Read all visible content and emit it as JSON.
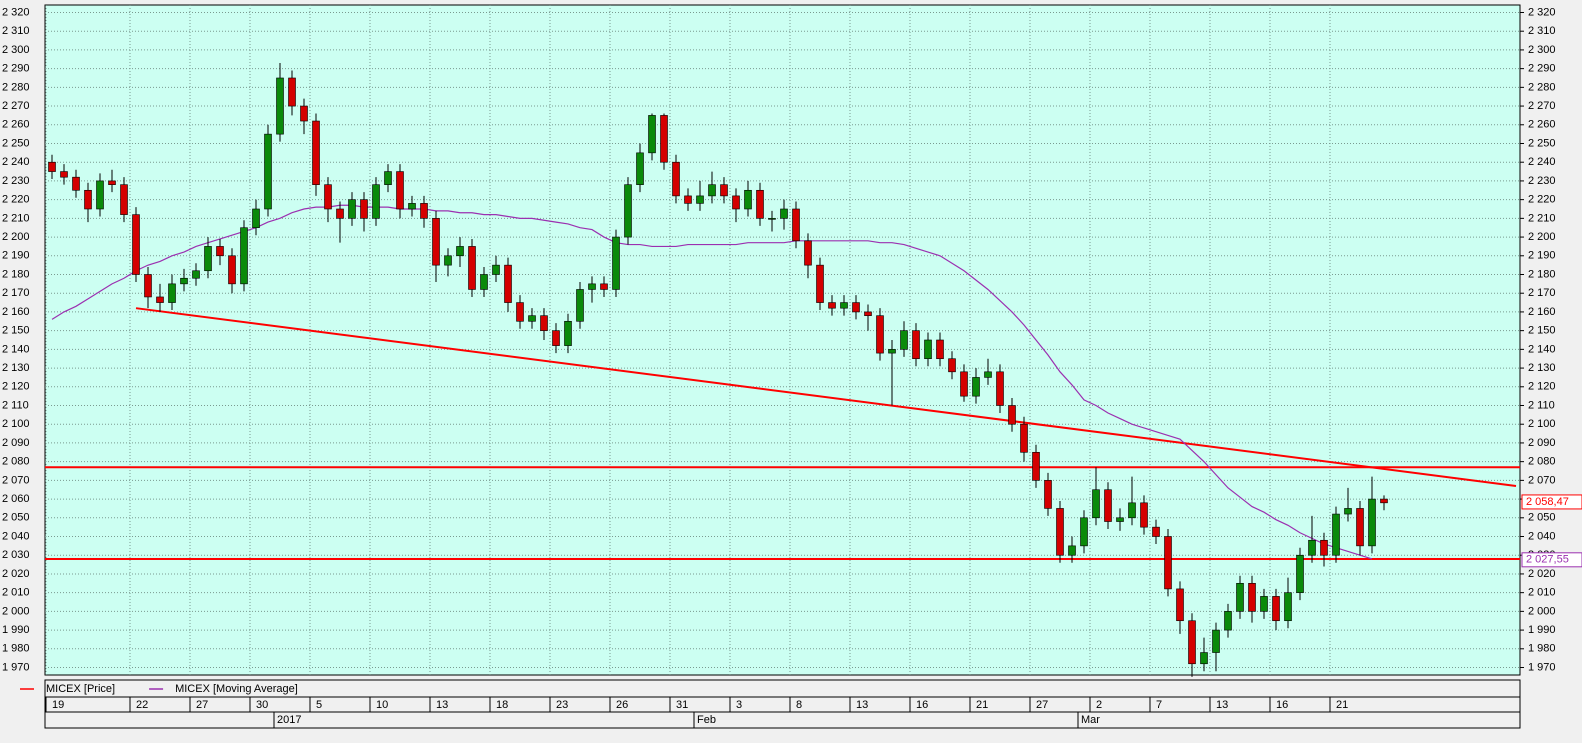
{
  "chart_data": {
    "type": "candlestick",
    "legend": [
      {
        "name": "MICEX [Price]",
        "color": "#ff0000"
      },
      {
        "name": "MICEX [Moving Average]",
        "color": "#9b30b0"
      }
    ],
    "up_color": "#0a8a0a",
    "down_color": "#d40000",
    "categories": [
      "19",
      null,
      null,
      null,
      null,
      null,
      null,
      "22",
      null,
      null,
      null,
      null,
      "27",
      null,
      null,
      null,
      null,
      "30",
      null,
      null,
      null,
      null,
      "5",
      null,
      null,
      null,
      null,
      "10",
      null,
      null,
      null,
      null,
      "13",
      null,
      null,
      null,
      null,
      "18",
      null,
      null,
      null,
      null,
      "23",
      null,
      null,
      null,
      null,
      "26",
      null,
      null,
      null,
      null,
      "31",
      null,
      null,
      null,
      null,
      "3",
      null,
      null,
      null,
      null,
      "8",
      null,
      null,
      null,
      null,
      "13",
      null,
      null,
      null,
      null,
      "16",
      null,
      null,
      null,
      null,
      "21",
      null,
      null,
      null,
      null,
      "27",
      null,
      null,
      null,
      null,
      "2",
      null,
      null,
      null,
      null,
      "7",
      null,
      null,
      null,
      null,
      "13",
      null,
      null,
      null,
      null,
      "16",
      null,
      null,
      null,
      null,
      "21",
      null,
      null,
      null,
      null
    ],
    "months": [
      null,
      null,
      null,
      null,
      null,
      null,
      null,
      null,
      null,
      null,
      null,
      null,
      null,
      null,
      null,
      null,
      null,
      null,
      null,
      "2017",
      null,
      null,
      null,
      null,
      null,
      null,
      null,
      null,
      null,
      null,
      null,
      null,
      null,
      null,
      null,
      null,
      null,
      null,
      null,
      null,
      null,
      null,
      null,
      null,
      null,
      null,
      null,
      null,
      null,
      null,
      null,
      null,
      null,
      null,
      "Feb",
      null,
      null,
      null,
      null,
      null,
      null,
      null,
      null,
      null,
      null,
      null,
      null,
      null,
      null,
      null,
      null,
      null,
      null,
      null,
      null,
      null,
      null,
      null,
      null,
      null,
      null,
      null,
      null,
      null,
      null,
      null,
      "Mar",
      null,
      null,
      null,
      null,
      null,
      null,
      null,
      null,
      null,
      null,
      null,
      null,
      null,
      null,
      null,
      null,
      null,
      null,
      null,
      null,
      null,
      null,
      null,
      null,
      null
    ],
    "open": [
      2240,
      2235,
      2232,
      2225,
      2215,
      2230,
      2228,
      2212,
      2180,
      2168,
      2165,
      2175,
      2178,
      2182,
      2195,
      2190,
      2175,
      2205,
      2215,
      2255,
      2285,
      2270,
      2262,
      2228,
      2215,
      2210,
      2220,
      2210,
      2228,
      2235,
      2215,
      2218,
      2210,
      2185,
      2190,
      2195,
      2172,
      2180,
      2185,
      2165,
      2155,
      2158,
      2150,
      2142,
      2155,
      2172,
      2175,
      2172,
      2200,
      2228,
      2245,
      2265,
      2240,
      2222,
      2218,
      2222,
      2228,
      2222,
      2215,
      2225,
      2210,
      2210,
      2215,
      2198,
      2185,
      2165,
      2162,
      2165,
      2160,
      2158,
      2138,
      2140,
      2150,
      2135,
      2145,
      2135,
      2128,
      2115,
      2125,
      2128,
      2110,
      2100,
      2085,
      2070,
      2055,
      2030,
      2035,
      2050,
      2065,
      2048,
      2050,
      2058,
      2045,
      2040,
      2012,
      1995,
      1972,
      1978,
      1990,
      2000,
      2015,
      2000,
      2008,
      1995,
      2010,
      2030,
      2038,
      2030,
      2052,
      2055,
      2035,
      2060
    ],
    "high": [
      2244,
      2239,
      2236,
      2229,
      2234,
      2236,
      2232,
      2216,
      2184,
      2175,
      2180,
      2183,
      2186,
      2200,
      2199,
      2194,
      2209,
      2220,
      2260,
      2293,
      2289,
      2274,
      2266,
      2232,
      2219,
      2224,
      2224,
      2232,
      2239,
      2239,
      2222,
      2222,
      2214,
      2194,
      2200,
      2199,
      2184,
      2190,
      2189,
      2169,
      2162,
      2162,
      2154,
      2159,
      2176,
      2179,
      2179,
      2204,
      2232,
      2250,
      2266,
      2266,
      2244,
      2226,
      2230,
      2235,
      2232,
      2226,
      2230,
      2229,
      2214,
      2220,
      2219,
      2202,
      2189,
      2169,
      2169,
      2169,
      2164,
      2162,
      2145,
      2155,
      2154,
      2149,
      2149,
      2139,
      2132,
      2130,
      2135,
      2132,
      2114,
      2104,
      2089,
      2074,
      2059,
      2040,
      2054,
      2077,
      2069,
      2055,
      2072,
      2062,
      2049,
      2044,
      2016,
      1999,
      1986,
      1994,
      2004,
      2019,
      2019,
      2012,
      2012,
      2018,
      2034,
      2051,
      2042,
      2056,
      2066,
      2059,
      2072,
      2062
    ],
    "low": [
      2231,
      2228,
      2221,
      2208,
      2211,
      2224,
      2208,
      2176,
      2162,
      2160,
      2161,
      2171,
      2174,
      2178,
      2185,
      2170,
      2171,
      2201,
      2211,
      2251,
      2265,
      2255,
      2222,
      2208,
      2197,
      2206,
      2203,
      2206,
      2224,
      2210,
      2211,
      2205,
      2176,
      2179,
      2184,
      2168,
      2168,
      2176,
      2160,
      2151,
      2151,
      2145,
      2138,
      2138,
      2151,
      2165,
      2168,
      2168,
      2196,
      2224,
      2241,
      2236,
      2218,
      2214,
      2214,
      2218,
      2218,
      2208,
      2211,
      2206,
      2203,
      2204,
      2194,
      2178,
      2161,
      2158,
      2158,
      2156,
      2150,
      2134,
      2110,
      2136,
      2131,
      2131,
      2131,
      2124,
      2112,
      2111,
      2121,
      2106,
      2096,
      2080,
      2066,
      2051,
      2026,
      2026,
      2031,
      2046,
      2044,
      2043,
      2046,
      2041,
      2036,
      2008,
      1988,
      1965,
      1968,
      1968,
      1986,
      1996,
      1994,
      1996,
      1990,
      1991,
      2006,
      2026,
      2024,
      2026,
      2048,
      2030,
      2031,
      2054
    ],
    "close": [
      2235,
      2232,
      2225,
      2215,
      2230,
      2228,
      2212,
      2180,
      2168,
      2165,
      2175,
      2178,
      2182,
      2195,
      2190,
      2175,
      2205,
      2215,
      2255,
      2285,
      2270,
      2262,
      2228,
      2215,
      2210,
      2220,
      2210,
      2228,
      2235,
      2215,
      2218,
      2210,
      2185,
      2190,
      2195,
      2172,
      2180,
      2185,
      2165,
      2155,
      2158,
      2150,
      2142,
      2155,
      2172,
      2175,
      2172,
      2200,
      2228,
      2245,
      2265,
      2240,
      2222,
      2218,
      2222,
      2228,
      2222,
      2215,
      2225,
      2210,
      2210,
      2215,
      2198,
      2185,
      2165,
      2162,
      2165,
      2160,
      2158,
      2138,
      2140,
      2150,
      2135,
      2145,
      2135,
      2128,
      2115,
      2125,
      2128,
      2110,
      2100,
      2085,
      2070,
      2055,
      2030,
      2035,
      2050,
      2065,
      2048,
      2050,
      2058,
      2045,
      2040,
      2012,
      1995,
      1972,
      1978,
      1990,
      2000,
      2015,
      2000,
      2008,
      1995,
      2010,
      2030,
      2038,
      2030,
      2052,
      2055,
      2035,
      2060,
      2058
    ],
    "moving_average": {
      "color": "#9b30b0",
      "values": [
        2156,
        2160,
        2163,
        2167,
        2171,
        2175,
        2178,
        2182,
        2185,
        2187,
        2190,
        2192,
        2195,
        2197,
        2199,
        2201,
        2203,
        2205,
        2208,
        2210,
        2213,
        2215,
        2216,
        2216,
        2217,
        2217,
        2216,
        2216,
        2216,
        2215,
        2215,
        2215,
        2214,
        2214,
        2213,
        2213,
        2212,
        2212,
        2211,
        2210,
        2210,
        2209,
        2208,
        2207,
        2205,
        2204,
        2200,
        2197,
        2196,
        2196,
        2195,
        2195,
        2195,
        2196,
        2196,
        2196,
        2196,
        2196,
        2197,
        2197,
        2197,
        2197,
        2198,
        2198,
        2198,
        2198,
        2198,
        2198,
        2198,
        2197,
        2197,
        2196,
        2194,
        2192,
        2190,
        2186,
        2182,
        2177,
        2172,
        2166,
        2160,
        2153,
        2145,
        2137,
        2128,
        2121,
        2113,
        2110,
        2106,
        2103,
        2100,
        2098,
        2096,
        2094,
        2092,
        2086,
        2080,
        2073,
        2066,
        2061,
        2056,
        2053,
        2049,
        2046,
        2042,
        2039,
        2036,
        2034,
        2032,
        2030,
        2028,
        null
      ]
    },
    "levels": {
      "color": "#ff0000",
      "values": [
        2077,
        2028
      ]
    },
    "trend_line": {
      "color": "#ff0000",
      "x": [
        7,
        122
      ],
      "y": [
        2162,
        2067
      ]
    },
    "last_labels": [
      {
        "value": 2058.47,
        "label": "2 058,47",
        "color": "#ff0000"
      },
      {
        "value": 2027.55,
        "label": "2 027,55",
        "color": "#9b30b0"
      }
    ],
    "ylim": [
      1966,
      2324
    ],
    "yticks": [
      {
        "value": 2320,
        "label": "2 320"
      },
      {
        "value": 2310,
        "label": "2 310"
      },
      {
        "value": 2300,
        "label": "2 300"
      },
      {
        "value": 2290,
        "label": "2 290"
      },
      {
        "value": 2280,
        "label": "2 280"
      },
      {
        "value": 2270,
        "label": "2 270"
      },
      {
        "value": 2260,
        "label": "2 260"
      },
      {
        "value": 2250,
        "label": "2 250"
      },
      {
        "value": 2240,
        "label": "2 240"
      },
      {
        "value": 2230,
        "label": "2 230"
      },
      {
        "value": 2220,
        "label": "2 220"
      },
      {
        "value": 2210,
        "label": "2 210"
      },
      {
        "value": 2200,
        "label": "2 200"
      },
      {
        "value": 2190,
        "label": "2 190"
      },
      {
        "value": 2180,
        "label": "2 180"
      },
      {
        "value": 2170,
        "label": "2 170"
      },
      {
        "value": 2160,
        "label": "2 160"
      },
      {
        "value": 2150,
        "label": "2 150"
      },
      {
        "value": 2140,
        "label": "2 140"
      },
      {
        "value": 2130,
        "label": "2 130"
      },
      {
        "value": 2120,
        "label": "2 120"
      },
      {
        "value": 2110,
        "label": "2 110"
      },
      {
        "value": 2100,
        "label": "2 100"
      },
      {
        "value": 2090,
        "label": "2 090"
      },
      {
        "value": 2080,
        "label": "2 080"
      },
      {
        "value": 2070,
        "label": "2 070"
      },
      {
        "value": 2060,
        "label": "2 060"
      },
      {
        "value": 2050,
        "label": "2 050"
      },
      {
        "value": 2040,
        "label": "2 040"
      },
      {
        "value": 2030,
        "label": "2 030"
      },
      {
        "value": 2020,
        "label": "2 020"
      },
      {
        "value": 2010,
        "label": "2 010"
      },
      {
        "value": 2000,
        "label": "2 000"
      },
      {
        "value": 1990,
        "label": "1 990"
      },
      {
        "value": 1980,
        "label": "1 980"
      },
      {
        "value": 1970,
        "label": "1 970"
      }
    ],
    "grid": true
  }
}
